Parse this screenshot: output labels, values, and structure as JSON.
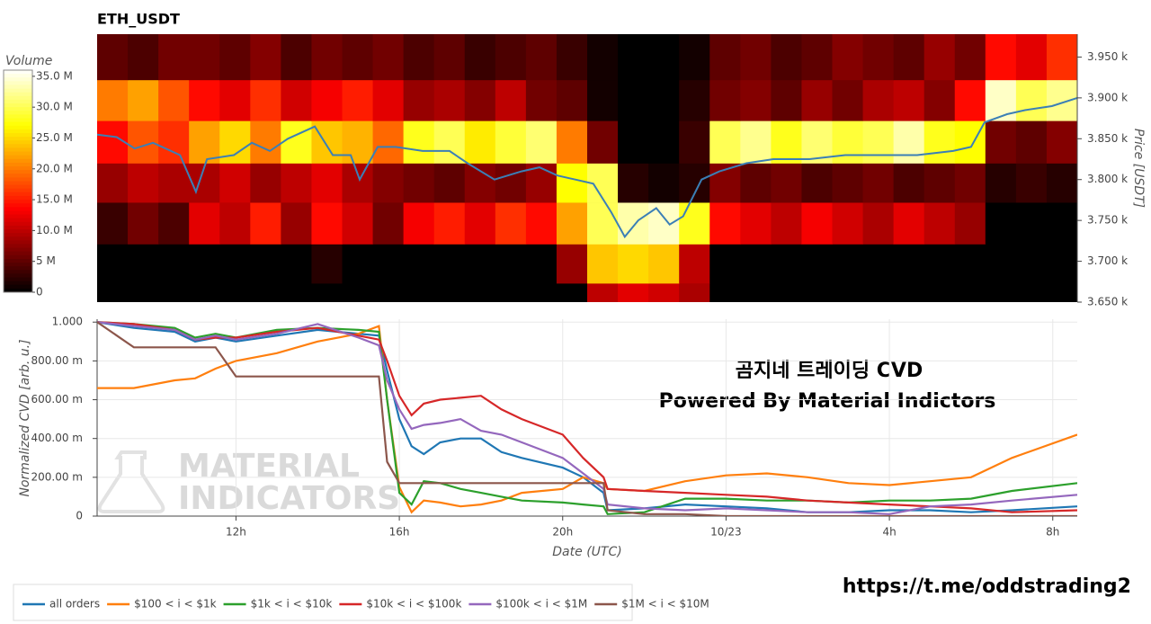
{
  "chart_data": [
    {
      "type": "heatmap",
      "title": "ETH_USDT",
      "colorbar_title": "Volume",
      "y_label": "Price [USDT]",
      "colorscale": "hot",
      "xlim": [
        8.6,
        32.6
      ],
      "ylim": [
        3650,
        3978
      ],
      "yticks": [
        {
          "value": 3650,
          "label": "3.650 k"
        },
        {
          "value": 3700,
          "label": "3.700 k"
        },
        {
          "value": 3750,
          "label": "3.750 k"
        },
        {
          "value": 3800,
          "label": "3.800 k"
        },
        {
          "value": 3850,
          "label": "3.850 k"
        },
        {
          "value": 3900,
          "label": "3.900 k"
        },
        {
          "value": 3950,
          "label": "3.950 k"
        }
      ],
      "zlim": [
        0,
        36
      ],
      "zticks": [
        0,
        {
          "value": 5,
          "label": "5 M"
        },
        {
          "value": 10,
          "label": "10.0 M"
        },
        {
          "value": 15,
          "label": "15.0 M"
        },
        {
          "value": 20,
          "label": "20.0 M"
        },
        {
          "value": 25,
          "label": "25.0 M"
        },
        {
          "value": 30,
          "label": "30.0 M"
        },
        {
          "value": 35,
          "label": "35.0 M"
        }
      ],
      "x": [
        8.975,
        9.725,
        10.475,
        11.225,
        11.975,
        12.725,
        13.475,
        14.225,
        14.975,
        15.725,
        16.475,
        17.225,
        17.975,
        18.725,
        19.475,
        20.225,
        20.975,
        21.725,
        22.475,
        23.225,
        23.975,
        24.725,
        25.475,
        26.225,
        26.975,
        27.725,
        28.475,
        29.225,
        29.975,
        30.725,
        31.475,
        32.225
      ],
      "bins": [
        3650,
        3673,
        3721,
        3772,
        3820,
        3872,
        3922,
        3978
      ],
      "z": [
        [
          0,
          0,
          0,
          0,
          0,
          0,
          0,
          0,
          0,
          0,
          0,
          0,
          0,
          0,
          0,
          0,
          10,
          12,
          11,
          9,
          0,
          0,
          0,
          0,
          0,
          0,
          0,
          0,
          0,
          0,
          0,
          0
        ],
        [
          0,
          0,
          0,
          0,
          0,
          0,
          0,
          2,
          0,
          0,
          0,
          0,
          0,
          0,
          0,
          8,
          24,
          25,
          24,
          10,
          0,
          0,
          0,
          0,
          0,
          0,
          0,
          0,
          0,
          0,
          0,
          0
        ],
        [
          3,
          6,
          4,
          12,
          10,
          15,
          8,
          14,
          11,
          6,
          13,
          15,
          12,
          16,
          14,
          22,
          30,
          33,
          34,
          28,
          14,
          12,
          10,
          13,
          11,
          9,
          12,
          10,
          8,
          0,
          0,
          0
        ],
        [
          8,
          10,
          9,
          9,
          11,
          8,
          10,
          12,
          9,
          7,
          6,
          5,
          7,
          6,
          8,
          27,
          30,
          2,
          1,
          2,
          7,
          5,
          6,
          4,
          5,
          6,
          4,
          5,
          6,
          2,
          3,
          2
        ],
        [
          14,
          18,
          16,
          22,
          25,
          20,
          28,
          24,
          23,
          19,
          28,
          30,
          26,
          29,
          31,
          20,
          6,
          0,
          0,
          3,
          30,
          32,
          28,
          31,
          29,
          30,
          33,
          28,
          27,
          6,
          5,
          7
        ],
        [
          20,
          22,
          18,
          14,
          12,
          16,
          11,
          13,
          15,
          12,
          8,
          9,
          7,
          10,
          6,
          5,
          1,
          0,
          0,
          2,
          6,
          7,
          5,
          8,
          6,
          9,
          10,
          7,
          14,
          34,
          30,
          32
        ],
        [
          5,
          4,
          6,
          6,
          5,
          7,
          4,
          6,
          5,
          6,
          4,
          5,
          3,
          4,
          5,
          3,
          1,
          0,
          0,
          1,
          5,
          6,
          4,
          5,
          7,
          6,
          5,
          8,
          6,
          14,
          12,
          16
        ]
      ],
      "price_line": {
        "color": "#3b7fb6",
        "x": [
          8.6,
          9.08,
          9.52,
          9.97,
          10.63,
          11.02,
          11.29,
          11.95,
          12.39,
          12.83,
          13.27,
          13.93,
          14.37,
          14.81,
          15.03,
          15.47,
          15.91,
          16.57,
          17.23,
          17.67,
          18.33,
          18.99,
          19.43,
          19.87,
          20.31,
          20.75,
          21.19,
          21.52,
          21.85,
          22.29,
          22.62,
          22.95,
          23.4,
          23.84,
          24.5,
          25.16,
          26.04,
          26.92,
          27.8,
          28.68,
          29.56,
          30.0,
          30.33,
          30.88,
          31.32,
          31.98,
          32.6
        ],
        "values": [
          3855,
          3852,
          3838,
          3845,
          3830,
          3785,
          3825,
          3830,
          3845,
          3835,
          3850,
          3865,
          3830,
          3830,
          3800,
          3840,
          3840,
          3835,
          3835,
          3820,
          3800,
          3810,
          3815,
          3805,
          3800,
          3795,
          3760,
          3730,
          3750,
          3765,
          3745,
          3755,
          3800,
          3810,
          3820,
          3825,
          3825,
          3830,
          3830,
          3830,
          3835,
          3840,
          3870,
          3880,
          3885,
          3890,
          3900
        ]
      }
    },
    {
      "type": "line",
      "x_label": "Date (UTC)",
      "y_label": "Normalized CVD [arb. u.]",
      "grid": true,
      "annotations": [
        "곰지네 트레이딩 CVD",
        "Powered By Material Indictors"
      ],
      "xlim": [
        8.6,
        32.6
      ],
      "ylim": [
        0,
        1.015
      ],
      "xticks": [
        {
          "value": 12,
          "label": "12h"
        },
        {
          "value": 16,
          "label": "16h"
        },
        {
          "value": 20,
          "label": "20h"
        },
        {
          "value": 24,
          "label": "10/23"
        },
        {
          "value": 28,
          "label": "4h"
        },
        {
          "value": 32,
          "label": "8h"
        }
      ],
      "yticks": [
        0,
        {
          "value": 0.2,
          "label": "200.00 m"
        },
        {
          "value": 0.4,
          "label": "400.00 m"
        },
        {
          "value": 0.6,
          "label": "600.00 m"
        },
        {
          "value": 0.8,
          "label": "800.00 m"
        },
        {
          "value": 1,
          "label": "1.000"
        }
      ],
      "x": [
        8.6,
        9.5,
        10.5,
        11,
        11.5,
        12,
        13,
        14,
        15,
        15.5,
        15.7,
        16,
        16.3,
        16.6,
        17,
        17.5,
        18,
        18.5,
        19,
        20,
        20.5,
        21,
        21.1,
        22,
        23,
        24,
        25,
        26,
        27,
        28,
        29,
        30,
        31,
        32.6
      ],
      "series": [
        {
          "name": "all orders",
          "color": "#1f77b4",
          "values": [
            1.0,
            0.97,
            0.95,
            0.9,
            0.92,
            0.9,
            0.93,
            0.96,
            0.94,
            0.93,
            0.75,
            0.5,
            0.36,
            0.32,
            0.38,
            0.4,
            0.4,
            0.33,
            0.3,
            0.25,
            0.2,
            0.12,
            0.03,
            0.04,
            0.06,
            0.05,
            0.04,
            0.02,
            0.02,
            0.03,
            0.03,
            0.02,
            0.03,
            0.05
          ]
        },
        {
          "name": "$100 < i < $1k",
          "color": "#ff7f0e",
          "values": [
            0.66,
            0.66,
            0.7,
            0.71,
            0.76,
            0.8,
            0.84,
            0.9,
            0.94,
            0.98,
            0.6,
            0.15,
            0.02,
            0.08,
            0.07,
            0.05,
            0.06,
            0.08,
            0.12,
            0.14,
            0.2,
            0.17,
            0.14,
            0.13,
            0.18,
            0.21,
            0.22,
            0.2,
            0.17,
            0.16,
            0.18,
            0.2,
            0.3,
            0.42
          ]
        },
        {
          "name": "$1k < i < $10k",
          "color": "#2ca02c",
          "values": [
            1.0,
            0.99,
            0.97,
            0.92,
            0.94,
            0.92,
            0.96,
            0.97,
            0.96,
            0.95,
            0.6,
            0.12,
            0.06,
            0.18,
            0.17,
            0.14,
            0.12,
            0.1,
            0.08,
            0.07,
            0.06,
            0.05,
            0.01,
            0.02,
            0.09,
            0.09,
            0.08,
            0.08,
            0.07,
            0.08,
            0.08,
            0.09,
            0.13,
            0.17
          ]
        },
        {
          "name": "$10k < i < $100k",
          "color": "#d62728",
          "values": [
            1.0,
            0.99,
            0.96,
            0.91,
            0.92,
            0.92,
            0.95,
            0.97,
            0.93,
            0.91,
            0.8,
            0.62,
            0.52,
            0.58,
            0.6,
            0.61,
            0.62,
            0.55,
            0.5,
            0.42,
            0.3,
            0.2,
            0.14,
            0.13,
            0.12,
            0.11,
            0.1,
            0.08,
            0.07,
            0.06,
            0.05,
            0.04,
            0.02,
            0.03
          ]
        },
        {
          "name": "$100k < i < $1M",
          "color": "#9467bd",
          "values": [
            1.0,
            0.98,
            0.96,
            0.91,
            0.93,
            0.91,
            0.94,
            0.99,
            0.92,
            0.88,
            0.7,
            0.55,
            0.45,
            0.47,
            0.48,
            0.5,
            0.44,
            0.42,
            0.38,
            0.3,
            0.22,
            0.14,
            0.06,
            0.04,
            0.03,
            0.04,
            0.03,
            0.02,
            0.02,
            0.01,
            0.05,
            0.06,
            0.08,
            0.11
          ]
        },
        {
          "name": "$1M < i < $10M",
          "color": "#8c564b",
          "values": [
            1.0,
            0.87,
            0.87,
            0.87,
            0.87,
            0.72,
            0.72,
            0.72,
            0.72,
            0.72,
            0.28,
            0.17,
            0.17,
            0.17,
            0.17,
            0.17,
            0.17,
            0.17,
            0.17,
            0.17,
            0.17,
            0.17,
            0.03,
            0.01,
            0.01,
            0.0,
            0.0,
            0.0,
            0.0,
            0.0,
            0.0,
            0.0,
            0.0,
            0.0
          ]
        }
      ]
    }
  ],
  "watermark": [
    "MATERIAL",
    "INDICATORS"
  ],
  "footer": {
    "link": "https://t.me/oddstrading2"
  }
}
